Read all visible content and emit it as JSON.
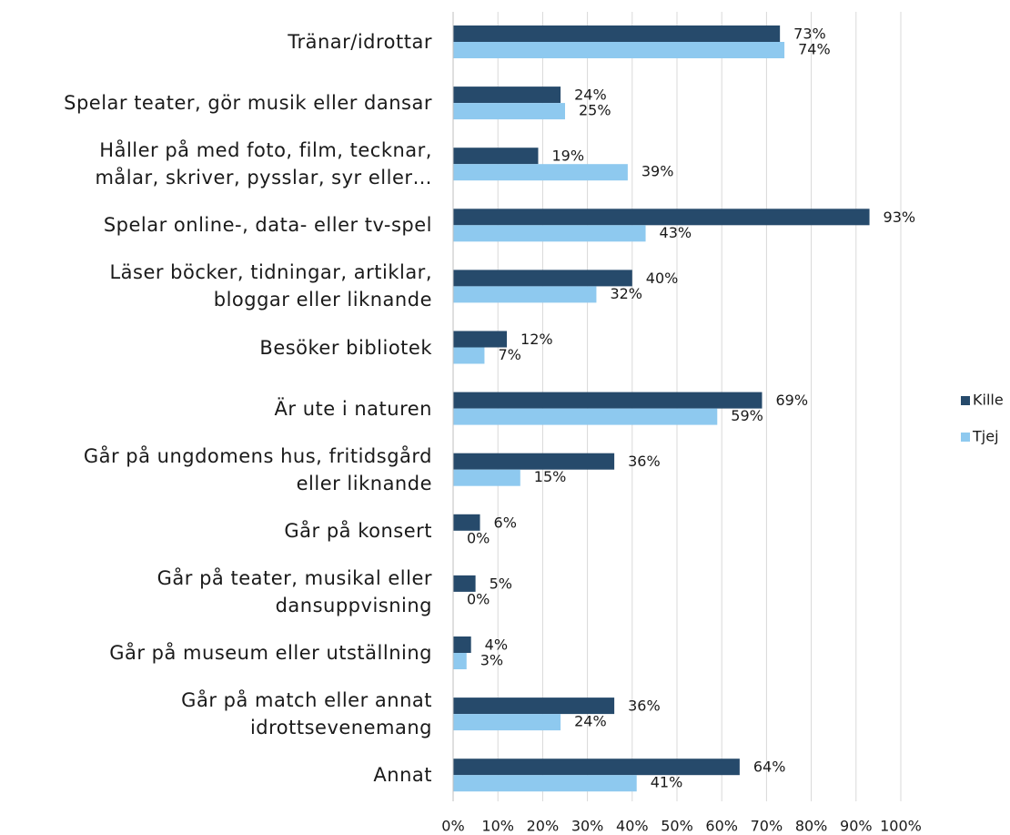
{
  "chart_data": {
    "type": "bar",
    "orientation": "horizontal",
    "categories": [
      "Tränar/idrottar",
      "Spelar teater, gör musik eller dansar",
      "Håller på med foto, film, tecknar,\nmålar, skriver, pysslar, syr eller…",
      "Spelar online-, data- eller tv-spel",
      "Läser böcker, tidningar, artiklar,\nbloggar eller liknande",
      "Besöker bibliotek",
      "Är ute i naturen",
      "Går på ungdomens hus, fritidsgård\neller liknande",
      "Går på konsert",
      "Går på teater, musikal eller\ndansuppvisning",
      "Går på museum eller utställning",
      "Går på match eller annat\nidrottsevenemang",
      "Annat"
    ],
    "series": [
      {
        "name": "Kille",
        "color": "#264a6b",
        "values": [
          73,
          24,
          19,
          93,
          40,
          12,
          69,
          36,
          6,
          5,
          4,
          36,
          64
        ],
        "value_labels": [
          "73%",
          "24%",
          "19%",
          "93%",
          "40%",
          "12%",
          "69%",
          "36%",
          "6%",
          "5%",
          "4%",
          "36%",
          "64%"
        ]
      },
      {
        "name": "Tjej",
        "color": "#8ec9ef",
        "values": [
          74,
          25,
          39,
          43,
          32,
          7,
          59,
          15,
          0,
          0,
          3,
          24,
          41
        ],
        "value_labels": [
          "74%",
          "25%",
          "39%",
          "43%",
          "32%",
          "7%",
          "59%",
          "15%",
          "0%",
          "0%",
          "3%",
          "24%",
          "41%"
        ]
      }
    ],
    "xlim": [
      0,
      100
    ],
    "xticks": [
      {
        "value": 0,
        "label": "0%"
      },
      {
        "value": 10,
        "label": "10%"
      },
      {
        "value": 20,
        "label": "20%"
      },
      {
        "value": 30,
        "label": "30%"
      },
      {
        "value": 40,
        "label": "40%"
      },
      {
        "value": 50,
        "label": "50%"
      },
      {
        "value": 60,
        "label": "60%"
      },
      {
        "value": 70,
        "label": "70%"
      },
      {
        "value": 80,
        "label": "80%"
      },
      {
        "value": 90,
        "label": "90%"
      },
      {
        "value": 100,
        "label": "100%"
      }
    ],
    "grid": true,
    "legend": "right"
  }
}
